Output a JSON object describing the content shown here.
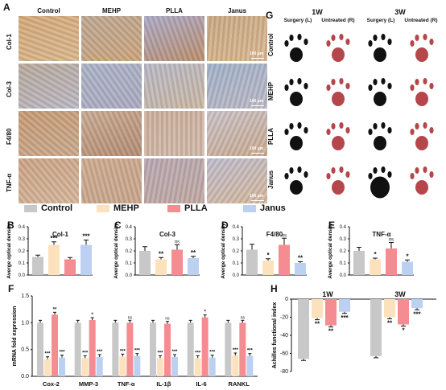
{
  "panelA": {
    "label": "A",
    "columns": [
      "Control",
      "MEHP",
      "PLLA",
      "Janus"
    ],
    "rows": [
      "Col-1",
      "Col-3",
      "F4/80",
      "TNF-α"
    ],
    "scale": "100 μm"
  },
  "panelG": {
    "label": "G",
    "weeks": [
      "1W",
      "3W"
    ],
    "subheaders": [
      "Surgery (L)",
      "Untreated (R)"
    ],
    "rows": [
      "Control",
      "MEHP",
      "PLLA",
      "Janus"
    ]
  },
  "legend": [
    {
      "name": "Control",
      "color": "#c8c8c8"
    },
    {
      "name": "MEHP",
      "color": "#fbe2bc"
    },
    {
      "name": "PLLA",
      "color": "#f48c91"
    },
    {
      "name": "Janus",
      "color": "#bcd0f2"
    }
  ],
  "chart_data": [
    {
      "panel": "B",
      "type": "bar",
      "title": "Col-1",
      "ylabel": "Averge optical density",
      "ylim": [
        0,
        0.4
      ],
      "yticks": [
        "0.0",
        "0.1",
        "0.2",
        "0.3",
        "0.4"
      ],
      "categories": [
        "Control",
        "MEHP",
        "PLLA",
        "Janus"
      ],
      "values": [
        0.15,
        0.25,
        0.13,
        0.25
      ],
      "errors": [
        0.015,
        0.025,
        0.015,
        0.04
      ],
      "annotations": [
        "",
        "***",
        "",
        "***"
      ]
    },
    {
      "panel": "C",
      "type": "bar",
      "title": "Col-3",
      "ylabel": "Averge optical density",
      "ylim": [
        0,
        0.4
      ],
      "yticks": [
        "0.0",
        "0.1",
        "0.2",
        "0.3",
        "0.4"
      ],
      "categories": [
        "Control",
        "MEHP",
        "PLLA",
        "Janus"
      ],
      "values": [
        0.2,
        0.13,
        0.21,
        0.14
      ],
      "errors": [
        0.035,
        0.015,
        0.04,
        0.015
      ],
      "annotations": [
        "",
        "**",
        "ns",
        "**"
      ]
    },
    {
      "panel": "D",
      "type": "bar",
      "title": "F4/80",
      "ylabel": "Averge optical density",
      "ylim": [
        0,
        0.4
      ],
      "yticks": [
        "0.0",
        "0.1",
        "0.2",
        "0.3",
        "0.4"
      ],
      "categories": [
        "Control",
        "MEHP",
        "PLLA",
        "Janus"
      ],
      "values": [
        0.21,
        0.12,
        0.25,
        0.1
      ],
      "errors": [
        0.045,
        0.015,
        0.055,
        0.01
      ],
      "annotations": [
        "",
        "*",
        "ns",
        "**"
      ]
    },
    {
      "panel": "E",
      "type": "bar",
      "title": "TNF-α",
      "ylabel": "Averge optical density",
      "ylim": [
        0,
        0.4
      ],
      "yticks": [
        "0.0",
        "0.1",
        "0.2",
        "0.3",
        "0.4"
      ],
      "categories": [
        "Control",
        "MEHP",
        "PLLA",
        "Janus"
      ],
      "values": [
        0.2,
        0.13,
        0.22,
        0.11
      ],
      "errors": [
        0.03,
        0.01,
        0.05,
        0.015
      ],
      "annotations": [
        "",
        "*",
        "ns",
        "*"
      ]
    },
    {
      "panel": "F",
      "type": "bar",
      "ylabel": "mRNA fold expression",
      "ylim": [
        0,
        1.5
      ],
      "yticks": [
        "0.0",
        "0.5",
        "1.0",
        "1.5"
      ],
      "categories": [
        "Cox-2",
        "MMP-3",
        "TNF-α",
        "IL-1β",
        "IL-6",
        "RANKL"
      ],
      "series": [
        {
          "name": "Control",
          "values": [
            1,
            1,
            1,
            1,
            1,
            1
          ],
          "annotations": [
            "",
            "",
            "",
            "",
            "",
            ""
          ]
        },
        {
          "name": "MEHP",
          "values": [
            0.32,
            0.34,
            0.37,
            0.34,
            0.34,
            0.39
          ],
          "annotations": [
            "***",
            "***",
            "***",
            "***",
            "***",
            "***"
          ]
        },
        {
          "name": "PLLA",
          "values": [
            1.15,
            1.05,
            1.0,
            0.98,
            1.1,
            1.0
          ],
          "annotations": [
            "**",
            "*",
            "ns",
            "ns",
            "*",
            "ns"
          ]
        },
        {
          "name": "Janus",
          "values": [
            0.35,
            0.36,
            0.38,
            0.36,
            0.35,
            0.38
          ],
          "annotations": [
            "***",
            "***",
            "***",
            "***",
            "***",
            "***"
          ]
        }
      ]
    },
    {
      "panel": "H",
      "type": "bar",
      "ylabel": "Achilles functional index",
      "ylim": [
        -80,
        0
      ],
      "yticks": [
        "-80",
        "-60",
        "-40",
        "-20",
        "0"
      ],
      "categories": [
        "1W",
        "3W"
      ],
      "series": [
        {
          "name": "Control",
          "values": [
            -66,
            -63
          ],
          "annotations": [
            "",
            ""
          ]
        },
        {
          "name": "MEHP",
          "values": [
            -21,
            -20
          ],
          "annotations": [
            "**",
            "**"
          ]
        },
        {
          "name": "PLLA",
          "values": [
            -29,
            -28
          ],
          "annotations": [
            "**",
            "*"
          ]
        },
        {
          "name": "Janus",
          "values": [
            -14,
            -10
          ],
          "annotations": [
            "***",
            "***"
          ]
        }
      ]
    }
  ]
}
